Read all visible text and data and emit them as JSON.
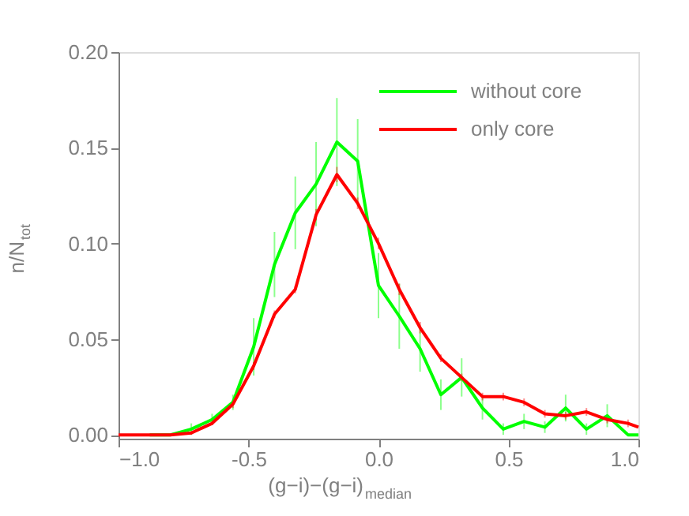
{
  "chart_data": {
    "type": "line",
    "xlabel": "(g−i)−(g−i)$_{median}$",
    "ylabel": "n/N$_{tot}$",
    "x": [
      -1.0,
      -0.96,
      -0.88,
      -0.8,
      -0.72,
      -0.64,
      -0.56,
      -0.48,
      -0.4,
      -0.32,
      -0.24,
      -0.16,
      -0.08,
      0.0,
      0.08,
      0.16,
      0.24,
      0.32,
      0.4,
      0.48,
      0.56,
      0.64,
      0.72,
      0.8,
      0.88,
      0.96,
      1.0
    ],
    "series": [
      {
        "name": "without core",
        "color": "#00ff00",
        "values": [
          null,
          null,
          0,
          0,
          0.003,
          0.008,
          0.017,
          0.046,
          0.089,
          0.116,
          0.131,
          0.153,
          0.143,
          0.078,
          0.062,
          0.045,
          0.021,
          0.03,
          0.014,
          0.003,
          0.007,
          0.004,
          0.014,
          0.003,
          0.01,
          0,
          0
        ],
        "errors": [
          null,
          null,
          null,
          null,
          0.003,
          0.003,
          0.004,
          0.015,
          0.017,
          0.019,
          0.022,
          0.023,
          0.022,
          0.017,
          0.017,
          0.012,
          0.008,
          0.01,
          0.006,
          0.003,
          0.004,
          0.003,
          0.007,
          0.003,
          0.006,
          null,
          null
        ]
      },
      {
        "name": "only core",
        "color": "#ff0000",
        "values": [
          0,
          0,
          0,
          0,
          0.001,
          0.006,
          0.016,
          0.036,
          0.063,
          0.076,
          0.115,
          0.136,
          0.121,
          0.1,
          0.076,
          0.056,
          0.04,
          0.03,
          0.02,
          0.02,
          0.017,
          0.011,
          0.01,
          0.012,
          0.008,
          0.006,
          0.004
        ],
        "errors": [
          null,
          null,
          null,
          null,
          0.001,
          0.001,
          0.002,
          0.002,
          0.002,
          0.002,
          0.003,
          0.004,
          0.003,
          0.003,
          0.003,
          0.003,
          0.002,
          0.002,
          0.002,
          0.002,
          0.002,
          0.002,
          0.002,
          0.002,
          0.002,
          0.002,
          null
        ]
      }
    ],
    "xlim": [
      -1.0,
      1.0
    ],
    "xticks": [
      {
        "value": -1.0,
        "label": "−1.0"
      },
      -0.5,
      {
        "value": 0.0,
        "label": "0.0"
      },
      0.5,
      {
        "value": 1.0,
        "label": "1.0"
      }
    ],
    "ylim": [
      -0.002,
      0.2
    ],
    "yticks": [
      {
        "value": 0.0,
        "label": "0.00"
      },
      0.05,
      {
        "value": 0.1,
        "label": "0.10"
      },
      0.15,
      {
        "value": 0.2,
        "label": "0.20"
      }
    ],
    "grid": false,
    "legend": "top right",
    "marker": "none",
    "line_style": "solid"
  }
}
